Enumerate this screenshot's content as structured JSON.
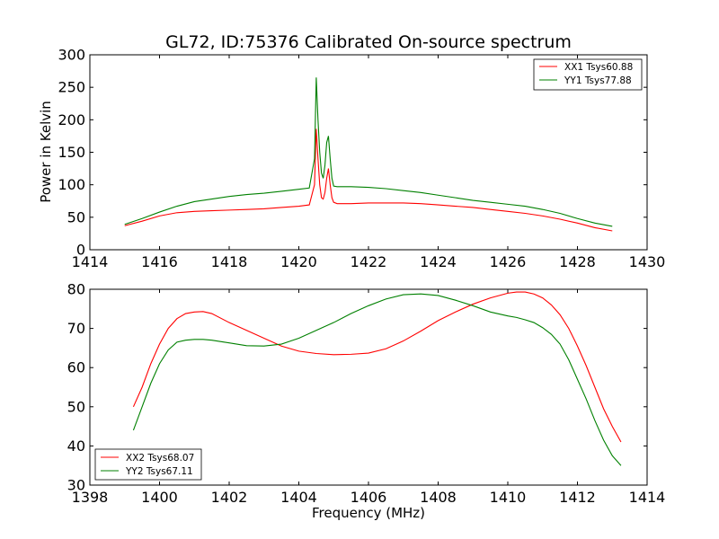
{
  "chart_data": [
    {
      "type": "line",
      "title": "GL72, ID:75376 Calibrated On-source spectrum",
      "xlabel": "",
      "ylabel": "Power in Kelvin",
      "xlim": [
        1414,
        1430
      ],
      "ylim": [
        0,
        300
      ],
      "xticks": [
        1414,
        1416,
        1418,
        1420,
        1422,
        1424,
        1426,
        1428,
        1430
      ],
      "yticks": [
        0,
        50,
        100,
        150,
        200,
        250,
        300
      ],
      "legend_position": "top-right",
      "series": [
        {
          "name": "XX1 Tsys60.88",
          "color": "#ff0000",
          "x": [
            1415.0,
            1415.5,
            1416.0,
            1416.5,
            1417.0,
            1417.5,
            1418.0,
            1418.5,
            1419.0,
            1419.5,
            1420.0,
            1420.3,
            1420.45,
            1420.5,
            1420.55,
            1420.6,
            1420.65,
            1420.7,
            1420.75,
            1420.8,
            1420.85,
            1420.9,
            1420.95,
            1421.0,
            1421.1,
            1421.3,
            1421.5,
            1422.0,
            1422.5,
            1423.0,
            1423.5,
            1424.0,
            1424.5,
            1425.0,
            1425.5,
            1426.0,
            1426.5,
            1427.0,
            1427.5,
            1428.0,
            1428.5,
            1429.0
          ],
          "y": [
            37,
            44,
            52,
            57,
            59,
            60,
            61,
            62,
            63,
            65,
            67,
            69,
            100,
            186,
            140,
            100,
            80,
            78,
            88,
            110,
            125,
            100,
            80,
            73,
            71,
            71,
            71,
            72,
            72,
            72,
            71,
            69,
            67,
            65,
            62,
            59,
            56,
            52,
            47,
            41,
            34,
            29
          ]
        },
        {
          "name": "YY1 Tsys77.88",
          "color": "#008000",
          "x": [
            1415.0,
            1415.5,
            1416.0,
            1416.5,
            1417.0,
            1417.5,
            1418.0,
            1418.5,
            1419.0,
            1419.5,
            1420.0,
            1420.3,
            1420.45,
            1420.5,
            1420.55,
            1420.6,
            1420.65,
            1420.7,
            1420.75,
            1420.8,
            1420.85,
            1420.9,
            1420.95,
            1421.0,
            1421.1,
            1421.3,
            1421.5,
            1422.0,
            1422.5,
            1423.0,
            1423.5,
            1424.0,
            1424.5,
            1425.0,
            1425.5,
            1426.0,
            1426.5,
            1427.0,
            1427.5,
            1428.0,
            1428.5,
            1429.0
          ],
          "y": [
            39,
            48,
            58,
            67,
            74,
            78,
            82,
            85,
            87,
            90,
            93,
            95,
            140,
            265,
            200,
            150,
            118,
            110,
            130,
            165,
            175,
            140,
            110,
            98,
            97,
            97,
            97,
            96,
            94,
            91,
            88,
            84,
            80,
            76,
            73,
            70,
            67,
            62,
            56,
            48,
            41,
            36
          ]
        }
      ]
    },
    {
      "type": "line",
      "title": "",
      "xlabel": "Frequency (MHz)",
      "ylabel": "",
      "xlim": [
        1398,
        1414
      ],
      "ylim": [
        30,
        80
      ],
      "xticks": [
        1398,
        1400,
        1402,
        1404,
        1406,
        1408,
        1410,
        1412,
        1414
      ],
      "yticks": [
        30,
        40,
        50,
        60,
        70,
        80
      ],
      "legend_position": "bottom-left",
      "series": [
        {
          "name": "XX2 Tsys68.07",
          "color": "#ff0000",
          "x": [
            1399.25,
            1399.5,
            1399.75,
            1400.0,
            1400.25,
            1400.5,
            1400.75,
            1401.0,
            1401.25,
            1401.5,
            1402.0,
            1402.5,
            1403.0,
            1403.5,
            1404.0,
            1404.5,
            1405.0,
            1405.5,
            1406.0,
            1406.5,
            1407.0,
            1407.5,
            1408.0,
            1408.5,
            1409.0,
            1409.5,
            1410.0,
            1410.25,
            1410.5,
            1410.75,
            1411.0,
            1411.25,
            1411.5,
            1411.75,
            1412.0,
            1412.25,
            1412.5,
            1412.75,
            1413.0,
            1413.25
          ],
          "y": [
            50,
            55,
            61,
            66,
            70,
            72.5,
            73.8,
            74.2,
            74.3,
            73.8,
            71.5,
            69.5,
            67.5,
            65.5,
            64.2,
            63.6,
            63.3,
            63.4,
            63.7,
            64.8,
            66.8,
            69.3,
            72,
            74.2,
            76.2,
            77.8,
            79.0,
            79.3,
            79.3,
            78.8,
            77.8,
            76,
            73.5,
            70,
            65.5,
            60.5,
            55,
            49.5,
            45,
            41
          ]
        },
        {
          "name": "YY2 Tsys67.11",
          "color": "#008000",
          "x": [
            1399.25,
            1399.5,
            1399.75,
            1400.0,
            1400.25,
            1400.5,
            1400.75,
            1401.0,
            1401.25,
            1401.5,
            1402.0,
            1402.5,
            1403.0,
            1403.5,
            1404.0,
            1404.5,
            1405.0,
            1405.5,
            1406.0,
            1406.5,
            1407.0,
            1407.5,
            1408.0,
            1408.5,
            1409.0,
            1409.5,
            1410.0,
            1410.25,
            1410.5,
            1410.75,
            1411.0,
            1411.25,
            1411.5,
            1411.75,
            1412.0,
            1412.25,
            1412.5,
            1412.75,
            1413.0,
            1413.25
          ],
          "y": [
            44,
            50,
            56,
            61,
            64.5,
            66.5,
            67,
            67.2,
            67.2,
            67,
            66.3,
            65.6,
            65.5,
            66,
            67.5,
            69.5,
            71.5,
            73.8,
            75.8,
            77.5,
            78.6,
            78.8,
            78.4,
            77.2,
            75.8,
            74.2,
            73.2,
            72.8,
            72.2,
            71.5,
            70.2,
            68.5,
            66,
            62,
            57,
            52,
            46.5,
            41.5,
            37.5,
            35
          ]
        }
      ]
    }
  ]
}
